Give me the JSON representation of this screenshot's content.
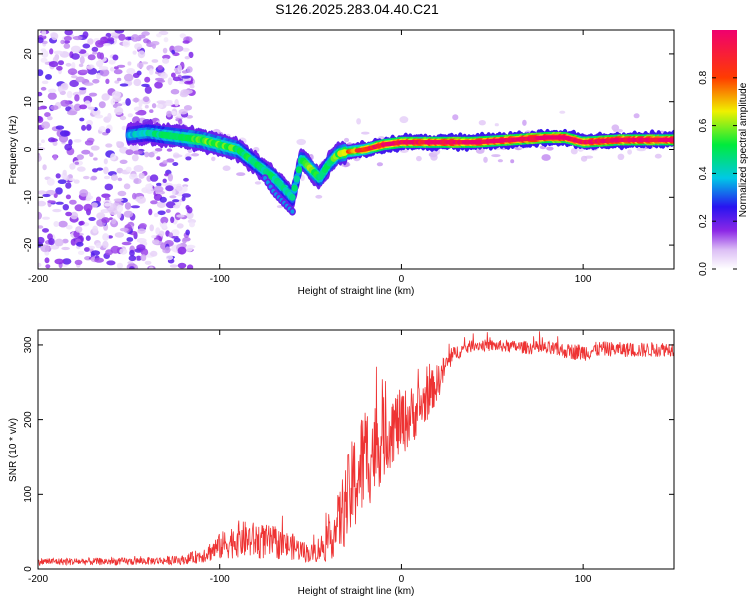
{
  "title": "S126.2025.283.04.40.C21",
  "chart_data": [
    {
      "type": "heatmap",
      "name": "spectrogram",
      "xlabel": "Height of straight line (km)",
      "ylabel": "Frequency (Hz)",
      "xlim": [
        -200,
        150
      ],
      "ylim": [
        -25,
        25
      ],
      "xticks": [
        -200,
        -100,
        0,
        100
      ],
      "yticks": [
        -20,
        -10,
        0,
        10,
        20
      ],
      "colorbar": {
        "label": "Normalized spectral amplitude",
        "range": [
          0,
          1
        ],
        "ticks": [
          "0.0",
          "0.2",
          "0.4",
          "0.6",
          "0.8"
        ],
        "tick_values": [
          0.0,
          0.2,
          0.4,
          0.6,
          0.8
        ],
        "colormap": "rainbow (white-violet-blue-cyan-green-yellow-red-magenta)"
      },
      "ridge": {
        "x": [
          -150,
          -140,
          -130,
          -120,
          -110,
          -100,
          -90,
          -80,
          -70,
          -60,
          -55,
          -50,
          -45,
          -40,
          -35,
          -30,
          -20,
          -10,
          0,
          10,
          20,
          40,
          60,
          80,
          90,
          100,
          120,
          150
        ],
        "freq": [
          3,
          3.5,
          3,
          2.5,
          2,
          1,
          0,
          -3,
          -6,
          -10,
          -2,
          -4,
          -6,
          -3,
          -1,
          -0.5,
          0,
          1,
          1.5,
          1.5,
          1.5,
          1.5,
          2,
          2.5,
          2.5,
          1.5,
          2,
          2
        ],
        "amplitude": [
          0.25,
          0.3,
          0.35,
          0.4,
          0.45,
          0.45,
          0.4,
          0.35,
          0.35,
          0.3,
          0.4,
          0.45,
          0.4,
          0.35,
          0.45,
          0.6,
          0.7,
          0.85,
          0.85,
          0.85,
          0.9,
          0.9,
          0.9,
          0.95,
          0.95,
          0.85,
          0.9,
          0.9
        ]
      },
      "branch": {
        "x": [
          -75,
          -70,
          -65,
          -60
        ],
        "freq": [
          -6,
          -9,
          -11,
          -13
        ]
      }
    },
    {
      "type": "line",
      "name": "snr",
      "xlabel": "Height of straight line (km)",
      "ylabel": "SNR (10 * v/v)",
      "xlim": [
        -200,
        150
      ],
      "ylim": [
        0,
        320
      ],
      "xticks": [
        -200,
        -100,
        0,
        100
      ],
      "yticks": [
        0,
        100,
        200,
        300
      ],
      "color": "#ee3333",
      "envelope": {
        "x": [
          -200,
          -150,
          -120,
          -110,
          -100,
          -90,
          -80,
          -70,
          -60,
          -50,
          -40,
          -35,
          -30,
          -25,
          -20,
          -15,
          -10,
          -5,
          0,
          10,
          20,
          25,
          30,
          40,
          60,
          80,
          90,
          100,
          110,
          130,
          150
        ],
        "mean": [
          10,
          10,
          12,
          18,
          30,
          40,
          38,
          35,
          30,
          20,
          35,
          60,
          90,
          120,
          150,
          160,
          175,
          190,
          195,
          215,
          250,
          275,
          290,
          300,
          298,
          295,
          292,
          290,
          295,
          293,
          295
        ],
        "spread": [
          5,
          5,
          6,
          10,
          18,
          25,
          25,
          22,
          18,
          12,
          25,
          40,
          60,
          70,
          75,
          65,
          55,
          50,
          45,
          35,
          25,
          15,
          10,
          8,
          8,
          10,
          10,
          12,
          10,
          10,
          10
        ]
      }
    }
  ]
}
